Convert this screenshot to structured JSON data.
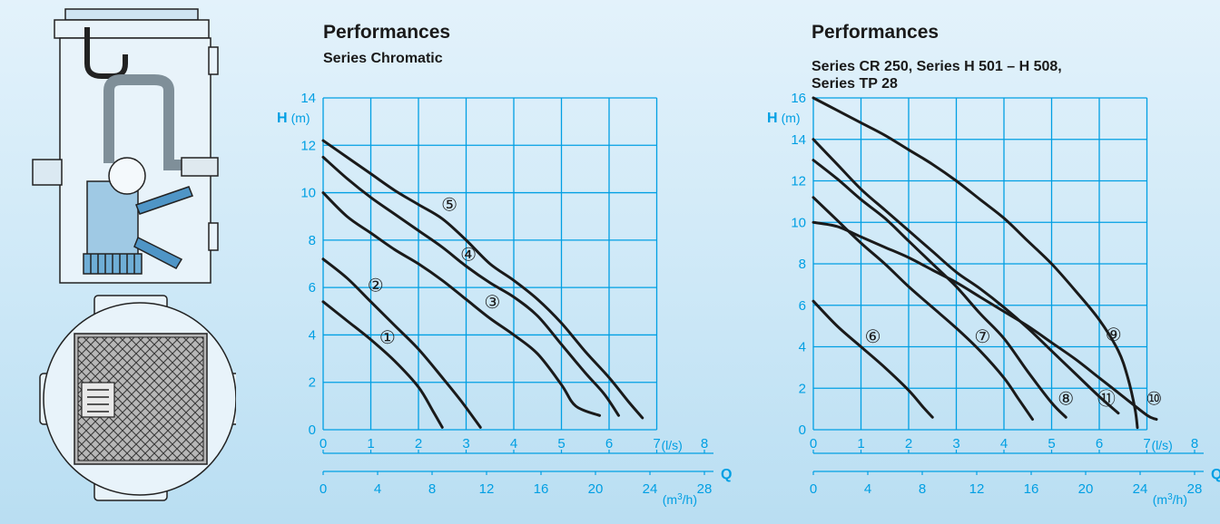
{
  "colors": {
    "grid": "#009fe3",
    "curve": "#1a1a1a",
    "background": "#d2eaf8"
  },
  "images": {
    "top": "pump-sump-side-view-icon",
    "bottom": "pump-sump-top-view-icon"
  },
  "chart_data": [
    {
      "type": "line",
      "title": "Performances",
      "subtitle": "Series Chromatic",
      "ylabel_bold": "H",
      "ylabel_unit": "(m)",
      "xlabel": "Q",
      "x_unit": "(l/s)",
      "x2_unit": "(m3/h)",
      "x_ticks": [
        0,
        1,
        2,
        3,
        4,
        5,
        6,
        7,
        8
      ],
      "x2_ticks": [
        0,
        4,
        8,
        12,
        16,
        20,
        24,
        28
      ],
      "y_ticks": [
        0,
        2,
        4,
        6,
        8,
        10,
        12,
        14
      ],
      "xlim": [
        0,
        8
      ],
      "ylim": [
        0,
        14
      ],
      "grid": true,
      "series": [
        {
          "name": "①",
          "label_at": [
            1.35,
            3.9
          ],
          "points": [
            [
              0,
              5.4
            ],
            [
              0.5,
              4.6
            ],
            [
              1.0,
              3.8
            ],
            [
              1.5,
              2.9
            ],
            [
              2.0,
              1.8
            ],
            [
              2.3,
              0.8
            ],
            [
              2.5,
              0.1
            ]
          ]
        },
        {
          "name": "②",
          "label_at": [
            1.1,
            6.1
          ],
          "points": [
            [
              0,
              7.2
            ],
            [
              0.5,
              6.4
            ],
            [
              1.0,
              5.4
            ],
            [
              1.5,
              4.4
            ],
            [
              2.0,
              3.4
            ],
            [
              2.5,
              2.2
            ],
            [
              2.9,
              1.2
            ],
            [
              3.3,
              0.1
            ]
          ]
        },
        {
          "name": "③",
          "label_at": [
            3.55,
            5.4
          ],
          "points": [
            [
              0,
              10.0
            ],
            [
              0.5,
              9.0
            ],
            [
              1.0,
              8.3
            ],
            [
              1.5,
              7.6
            ],
            [
              2.0,
              7.0
            ],
            [
              2.5,
              6.3
            ],
            [
              3.0,
              5.5
            ],
            [
              3.5,
              4.7
            ],
            [
              4.0,
              4.0
            ],
            [
              4.5,
              3.2
            ],
            [
              5.0,
              1.9
            ],
            [
              5.3,
              1.0
            ],
            [
              5.8,
              0.6
            ]
          ]
        },
        {
          "name": "④",
          "label_at": [
            3.05,
            7.4
          ],
          "points": [
            [
              0,
              11.5
            ],
            [
              0.5,
              10.6
            ],
            [
              1.0,
              9.8
            ],
            [
              1.5,
              9.1
            ],
            [
              2.0,
              8.4
            ],
            [
              2.5,
              7.7
            ],
            [
              3.0,
              6.9
            ],
            [
              3.5,
              6.2
            ],
            [
              4.0,
              5.6
            ],
            [
              4.5,
              4.8
            ],
            [
              5.0,
              3.6
            ],
            [
              5.5,
              2.4
            ],
            [
              5.9,
              1.5
            ],
            [
              6.2,
              0.6
            ]
          ]
        },
        {
          "name": "⑤",
          "label_at": [
            2.65,
            9.5
          ],
          "points": [
            [
              0,
              12.2
            ],
            [
              0.5,
              11.5
            ],
            [
              1.0,
              10.8
            ],
            [
              1.5,
              10.1
            ],
            [
              2.0,
              9.5
            ],
            [
              2.5,
              8.9
            ],
            [
              3.0,
              8.0
            ],
            [
              3.5,
              7.0
            ],
            [
              4.0,
              6.3
            ],
            [
              4.5,
              5.5
            ],
            [
              5.0,
              4.5
            ],
            [
              5.5,
              3.3
            ],
            [
              6.0,
              2.2
            ],
            [
              6.4,
              1.2
            ],
            [
              6.7,
              0.5
            ]
          ]
        }
      ]
    },
    {
      "type": "line",
      "title": "Performances",
      "subtitle": "Series CR 250, Series H 501 – H 508,",
      "subtitle2": "Series TP 28",
      "ylabel_bold": "H",
      "ylabel_unit": "(m)",
      "xlabel": "Q",
      "x_unit": "(l/s)",
      "x2_unit": "(m3/h)",
      "x_ticks": [
        0,
        1,
        2,
        3,
        4,
        5,
        6,
        7,
        8
      ],
      "x2_ticks": [
        0,
        4,
        8,
        12,
        16,
        20,
        24,
        28
      ],
      "y_ticks": [
        0,
        2,
        4,
        6,
        8,
        10,
        12,
        14,
        16
      ],
      "xlim": [
        0,
        8
      ],
      "ylim": [
        0,
        16
      ],
      "grid": true,
      "series": [
        {
          "name": "⑥",
          "label_at": [
            1.25,
            4.5
          ],
          "points": [
            [
              0,
              6.2
            ],
            [
              0.5,
              5.0
            ],
            [
              1.0,
              4.0
            ],
            [
              1.5,
              3.0
            ],
            [
              2.0,
              1.9
            ],
            [
              2.3,
              1.1
            ],
            [
              2.5,
              0.6
            ]
          ]
        },
        {
          "name": "⑦",
          "label_at": [
            3.55,
            4.5
          ],
          "points": [
            [
              0,
              11.2
            ],
            [
              0.5,
              10.1
            ],
            [
              1.0,
              9.0
            ],
            [
              1.5,
              8.0
            ],
            [
              2.0,
              6.9
            ],
            [
              2.5,
              5.9
            ],
            [
              3.0,
              4.9
            ],
            [
              3.5,
              3.8
            ],
            [
              4.0,
              2.5
            ],
            [
              4.3,
              1.5
            ],
            [
              4.6,
              0.5
            ]
          ]
        },
        {
          "name": "⑧",
          "label_at": [
            5.3,
            1.5
          ],
          "points": [
            [
              0,
              13.0
            ],
            [
              0.5,
              12.1
            ],
            [
              1.0,
              11.1
            ],
            [
              1.5,
              10.2
            ],
            [
              2.0,
              9.1
            ],
            [
              2.5,
              8.0
            ],
            [
              3.0,
              6.9
            ],
            [
              3.5,
              5.6
            ],
            [
              4.0,
              4.4
            ],
            [
              4.5,
              2.8
            ],
            [
              5.0,
              1.3
            ],
            [
              5.3,
              0.6
            ]
          ]
        },
        {
          "name": "⑨",
          "label_at": [
            6.3,
            4.6
          ],
          "points": [
            [
              0,
              16.0
            ],
            [
              0.5,
              15.4
            ],
            [
              1.0,
              14.8
            ],
            [
              1.5,
              14.2
            ],
            [
              2.0,
              13.5
            ],
            [
              2.5,
              12.8
            ],
            [
              3.0,
              12.0
            ],
            [
              3.5,
              11.1
            ],
            [
              4.0,
              10.2
            ],
            [
              4.5,
              9.1
            ],
            [
              5.0,
              8.0
            ],
            [
              5.5,
              6.7
            ],
            [
              6.0,
              5.3
            ],
            [
              6.4,
              3.8
            ],
            [
              6.6,
              2.5
            ],
            [
              6.75,
              1.0
            ],
            [
              6.8,
              0.1
            ]
          ]
        },
        {
          "name": "⑩",
          "label_at": [
            7.15,
            1.5
          ],
          "points": [
            [
              0,
              10.0
            ],
            [
              0.5,
              9.8
            ],
            [
              1.0,
              9.3
            ],
            [
              1.5,
              8.8
            ],
            [
              2.0,
              8.3
            ],
            [
              2.5,
              7.7
            ],
            [
              3.0,
              7.1
            ],
            [
              3.5,
              6.4
            ],
            [
              4.0,
              5.7
            ],
            [
              4.5,
              5.0
            ],
            [
              5.0,
              4.2
            ],
            [
              5.5,
              3.4
            ],
            [
              6.0,
              2.5
            ],
            [
              6.5,
              1.6
            ],
            [
              7.0,
              0.7
            ],
            [
              7.2,
              0.5
            ]
          ]
        },
        {
          "name": "⑪",
          "label_at": [
            6.15,
            1.5
          ],
          "points": [
            [
              0,
              14.0
            ],
            [
              0.5,
              12.8
            ],
            [
              1.0,
              11.6
            ],
            [
              1.5,
              10.6
            ],
            [
              2.0,
              9.6
            ],
            [
              2.5,
              8.6
            ],
            [
              3.0,
              7.6
            ],
            [
              3.5,
              6.8
            ],
            [
              4.0,
              5.9
            ],
            [
              4.5,
              4.9
            ],
            [
              5.0,
              3.8
            ],
            [
              5.5,
              2.7
            ],
            [
              6.0,
              1.6
            ],
            [
              6.4,
              0.8
            ]
          ]
        }
      ]
    }
  ]
}
